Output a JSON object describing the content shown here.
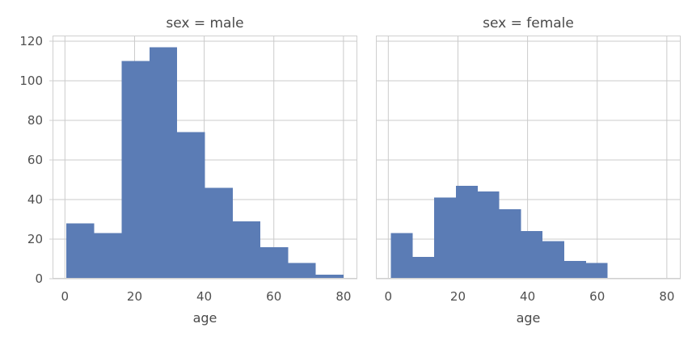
{
  "chart_data": [
    {
      "type": "histogram",
      "title": "sex = male",
      "xlabel": "age",
      "series_name": "male",
      "bin_start": 0.42,
      "bin_width": 7.958,
      "counts": [
        28,
        23,
        110,
        117,
        74,
        46,
        29,
        16,
        8,
        2
      ],
      "bin_edges": [
        0.42,
        8.38,
        16.34,
        24.29,
        32.25,
        40.21,
        48.17,
        56.13,
        64.08,
        72.04,
        80.0
      ],
      "xticks": [
        0,
        20,
        40,
        60,
        80
      ],
      "yticks": [
        0,
        20,
        40,
        60,
        80,
        100,
        120
      ],
      "xlim": [
        -3.56,
        83.98
      ],
      "ylim": [
        0,
        122.85
      ],
      "show_ytick_labels": true,
      "grid": true
    },
    {
      "type": "histogram",
      "title": "sex = female",
      "xlabel": "age",
      "series_name": "female",
      "bin_start": 0.75,
      "bin_width": 6.225,
      "counts": [
        23,
        11,
        41,
        47,
        44,
        35,
        24,
        19,
        9,
        8
      ],
      "bin_edges": [
        0.75,
        6.98,
        13.2,
        19.43,
        25.65,
        31.88,
        38.1,
        44.33,
        50.55,
        56.78,
        63.0
      ],
      "xticks": [
        0,
        20,
        40,
        60,
        80
      ],
      "yticks": [
        0,
        20,
        40,
        60,
        80,
        100,
        120
      ],
      "xlim": [
        -3.56,
        83.98
      ],
      "ylim": [
        0,
        122.85
      ],
      "show_ytick_labels": false,
      "grid": true
    }
  ],
  "style": {
    "bar_color": "#5b7cb5",
    "grid_color": "#cbcbcb",
    "frame_color": "#cfcfcf",
    "title_color": "#4a4a4a",
    "tick_color": "#4f4f4f",
    "background": "#ffffff"
  }
}
